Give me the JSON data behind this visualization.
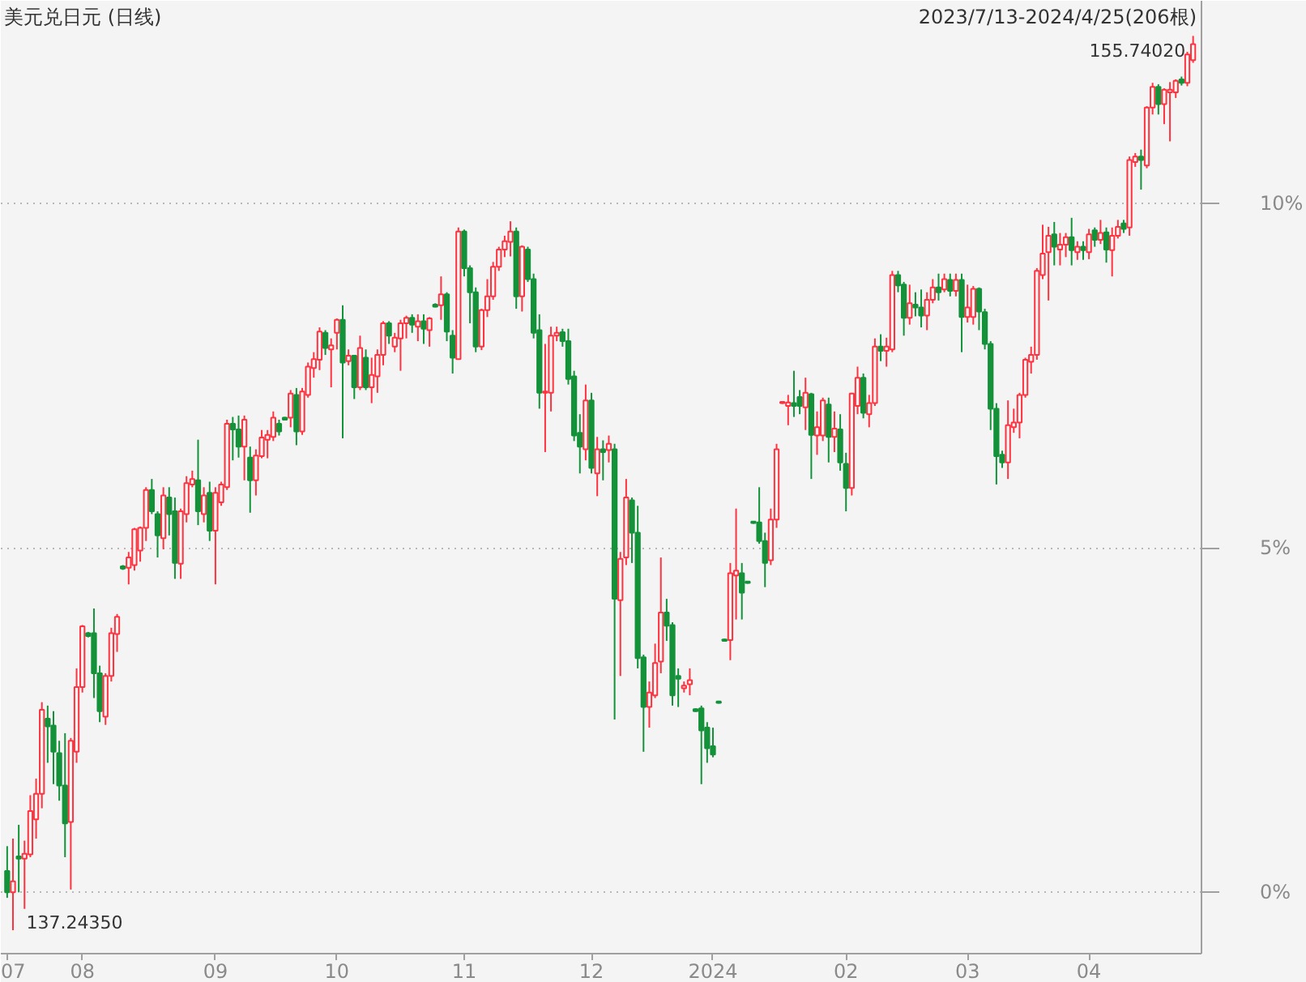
{
  "chart_data": {
    "type": "candlestick",
    "title": "美元兑日元 (日线)",
    "subtitle": "2023/7/13-2024/4/25(206根)",
    "categories": [
      "07",
      null,
      null,
      null,
      null,
      null,
      null,
      null,
      null,
      null,
      null,
      null,
      null,
      "08",
      null,
      null,
      null,
      null,
      null,
      null,
      null,
      null,
      null,
      null,
      null,
      null,
      null,
      null,
      null,
      null,
      null,
      null,
      null,
      null,
      null,
      null,
      "09",
      null,
      null,
      null,
      null,
      null,
      null,
      null,
      null,
      null,
      null,
      null,
      null,
      null,
      null,
      null,
      null,
      null,
      null,
      null,
      null,
      "10",
      null,
      null,
      null,
      null,
      null,
      null,
      null,
      null,
      null,
      null,
      null,
      null,
      null,
      null,
      null,
      null,
      null,
      null,
      null,
      null,
      null,
      "11",
      null,
      null,
      null,
      null,
      null,
      null,
      null,
      null,
      null,
      null,
      null,
      null,
      null,
      null,
      null,
      null,
      null,
      null,
      null,
      null,
      null,
      "12",
      null,
      null,
      null,
      null,
      null,
      null,
      null,
      null,
      null,
      null,
      null,
      null,
      null,
      null,
      null,
      null,
      null,
      null,
      null,
      null,
      "2024",
      null,
      null,
      null,
      null,
      null,
      null,
      null,
      null,
      null,
      null,
      null,
      null,
      null,
      null,
      null,
      null,
      null,
      null,
      null,
      null,
      null,
      null,
      "02",
      null,
      null,
      null,
      null,
      null,
      null,
      null,
      null,
      null,
      null,
      null,
      null,
      null,
      null,
      null,
      null,
      null,
      null,
      null,
      null,
      "03",
      null,
      null,
      null,
      null,
      null,
      null,
      null,
      null,
      null,
      null,
      null,
      null,
      null,
      null,
      null,
      null,
      null,
      null,
      null,
      null,
      "04",
      null,
      null,
      null,
      null,
      null,
      null,
      null,
      null,
      null,
      null,
      null,
      null,
      null,
      null,
      null,
      null,
      null,
      null
    ],
    "ohlc": [
      [
        0.31,
        0.67,
        -0.08,
        0.0
      ],
      [
        0.0,
        0.78,
        -0.55,
        0.16
      ],
      [
        0.52,
        0.98,
        0.0,
        0.49
      ],
      [
        0.49,
        0.75,
        -0.24,
        0.56
      ],
      [
        0.55,
        1.41,
        0.51,
        1.18
      ],
      [
        1.06,
        1.65,
        0.78,
        1.43
      ],
      [
        1.43,
        2.76,
        1.22,
        2.65
      ],
      [
        2.52,
        2.71,
        1.88,
        2.41
      ],
      [
        2.42,
        2.63,
        1.57,
        2.04
      ],
      [
        2.02,
        2.2,
        1.33,
        1.55
      ],
      [
        1.55,
        2.31,
        0.51,
        1.0
      ],
      [
        1.02,
        2.24,
        0.04,
        2.2
      ],
      [
        2.04,
        3.25,
        1.88,
        2.98
      ],
      [
        2.98,
        3.88,
        2.9,
        3.86
      ],
      [
        3.76,
        3.78,
        3.7,
        3.72
      ],
      [
        3.76,
        4.12,
        2.82,
        3.18
      ],
      [
        3.18,
        3.29,
        2.47,
        2.63
      ],
      [
        2.55,
        3.18,
        2.43,
        3.14
      ],
      [
        3.14,
        3.84,
        3.06,
        3.76
      ],
      [
        3.75,
        4.04,
        3.49,
        4.0
      ],
      [
        4.73,
        4.75,
        4.68,
        4.7
      ],
      [
        4.71,
        4.94,
        4.47,
        4.86
      ],
      [
        4.75,
        5.29,
        4.67,
        5.27
      ],
      [
        4.96,
        5.31,
        4.8,
        5.29
      ],
      [
        5.29,
        5.88,
        5.1,
        5.84
      ],
      [
        5.84,
        6.0,
        5.49,
        5.53
      ],
      [
        5.49,
        5.53,
        4.86,
        5.18
      ],
      [
        5.14,
        5.88,
        4.98,
        5.76
      ],
      [
        5.73,
        5.88,
        5.18,
        5.49
      ],
      [
        5.53,
        5.73,
        4.55,
        4.78
      ],
      [
        4.77,
        5.57,
        4.55,
        5.53
      ],
      [
        5.49,
        6.04,
        5.37,
        5.94
      ],
      [
        5.92,
        6.12,
        5.88,
        6.0
      ],
      [
        5.98,
        6.57,
        5.33,
        5.53
      ],
      [
        5.49,
        5.88,
        5.37,
        5.76
      ],
      [
        5.8,
        5.96,
        5.1,
        5.25
      ],
      [
        5.25,
        5.88,
        4.47,
        5.8
      ],
      [
        5.66,
        5.96,
        5.61,
        5.92
      ],
      [
        5.88,
        6.86,
        5.84,
        6.8
      ],
      [
        6.8,
        6.9,
        6.27,
        6.72
      ],
      [
        6.72,
        6.92,
        6.31,
        6.47
      ],
      [
        6.47,
        6.92,
        5.98,
        6.86
      ],
      [
        6.31,
        6.47,
        5.51,
        5.98
      ],
      [
        5.98,
        6.43,
        5.76,
        6.34
      ],
      [
        6.33,
        6.71,
        6.3,
        6.6
      ],
      [
        6.57,
        6.71,
        6.3,
        6.64
      ],
      [
        6.61,
        6.98,
        6.55,
        6.89
      ],
      [
        6.8,
        6.86,
        6.63,
        6.69
      ],
      [
        6.89,
        6.9,
        6.85,
        6.86
      ],
      [
        6.89,
        7.29,
        6.75,
        7.24
      ],
      [
        7.22,
        7.32,
        6.49,
        6.69
      ],
      [
        6.69,
        7.32,
        6.64,
        7.27
      ],
      [
        7.22,
        7.69,
        7.18,
        7.63
      ],
      [
        7.61,
        7.84,
        7.47,
        7.74
      ],
      [
        7.73,
        8.2,
        7.58,
        8.14
      ],
      [
        8.12,
        8.16,
        7.8,
        7.9
      ],
      [
        7.88,
        8.04,
        7.33,
        7.94
      ],
      [
        8.12,
        8.33,
        7.88,
        8.31
      ],
      [
        8.31,
        8.52,
        6.59,
        7.69
      ],
      [
        7.71,
        7.88,
        7.65,
        7.79
      ],
      [
        7.79,
        7.8,
        7.16,
        7.33
      ],
      [
        7.33,
        8.08,
        7.29,
        7.9
      ],
      [
        7.76,
        7.88,
        7.29,
        7.33
      ],
      [
        7.33,
        7.76,
        7.1,
        7.51
      ],
      [
        7.49,
        7.88,
        7.25,
        7.8
      ],
      [
        7.8,
        8.29,
        7.65,
        8.26
      ],
      [
        8.26,
        8.29,
        7.96,
        8.08
      ],
      [
        7.92,
        8.12,
        7.84,
        8.05
      ],
      [
        8.04,
        8.31,
        7.57,
        8.26
      ],
      [
        8.26,
        8.37,
        8.04,
        8.34
      ],
      [
        8.34,
        8.39,
        8.12,
        8.24
      ],
      [
        8.21,
        8.39,
        8.0,
        8.29
      ],
      [
        8.29,
        8.39,
        7.96,
        8.18
      ],
      [
        8.16,
        8.35,
        7.92,
        8.33
      ],
      [
        8.53,
        8.55,
        8.49,
        8.5
      ],
      [
        8.52,
        8.94,
        8.31,
        8.68
      ],
      [
        8.68,
        8.71,
        8.0,
        8.14
      ],
      [
        8.08,
        8.16,
        7.53,
        7.76
      ],
      [
        7.74,
        9.65,
        7.73,
        9.59
      ],
      [
        9.59,
        9.62,
        8.94,
        9.06
      ],
      [
        9.06,
        9.1,
        8.26,
        8.71
      ],
      [
        8.71,
        8.78,
        7.84,
        7.92
      ],
      [
        7.92,
        8.47,
        7.87,
        8.45
      ],
      [
        8.45,
        8.9,
        8.35,
        8.65
      ],
      [
        8.65,
        9.15,
        8.6,
        9.08
      ],
      [
        9.08,
        9.37,
        9.02,
        9.33
      ],
      [
        9.33,
        9.53,
        9.22,
        9.45
      ],
      [
        9.44,
        9.74,
        9.23,
        9.59
      ],
      [
        9.59,
        9.65,
        8.47,
        8.65
      ],
      [
        8.65,
        9.39,
        8.43,
        9.37
      ],
      [
        9.33,
        9.37,
        8.86,
        8.9
      ],
      [
        8.9,
        8.98,
        8.04,
        8.12
      ],
      [
        8.16,
        8.39,
        7.02,
        7.25
      ],
      [
        7.25,
        7.96,
        6.39,
        7.27
      ],
      [
        7.25,
        8.21,
        6.98,
        8.08
      ],
      [
        8.08,
        8.21,
        8.0,
        8.12
      ],
      [
        8.13,
        8.18,
        7.92,
        8.0
      ],
      [
        8.0,
        8.18,
        7.37,
        7.45
      ],
      [
        7.49,
        7.57,
        6.55,
        6.63
      ],
      [
        6.67,
        6.94,
        6.08,
        6.47
      ],
      [
        6.43,
        7.37,
        6.27,
        7.14
      ],
      [
        7.14,
        7.25,
        6.08,
        6.16
      ],
      [
        6.08,
        6.61,
        5.75,
        6.43
      ],
      [
        6.43,
        6.56,
        5.98,
        6.39
      ],
      [
        6.42,
        6.63,
        6.24,
        6.51
      ],
      [
        6.43,
        6.51,
        2.51,
        4.26
      ],
      [
        4.24,
        4.94,
        3.14,
        4.84
      ],
      [
        4.86,
        6.0,
        4.75,
        5.73
      ],
      [
        5.69,
        5.73,
        4.78,
        5.22
      ],
      [
        5.22,
        5.61,
        3.25,
        3.4
      ],
      [
        3.41,
        3.45,
        2.04,
        2.69
      ],
      [
        2.69,
        3.06,
        2.39,
        2.9
      ],
      [
        2.86,
        3.61,
        2.82,
        3.33
      ],
      [
        3.35,
        4.86,
        3.18,
        4.06
      ],
      [
        4.06,
        4.26,
        3.65,
        3.87
      ],
      [
        3.88,
        3.92,
        2.71,
        2.86
      ],
      [
        3.14,
        3.25,
        2.69,
        3.1
      ],
      [
        2.96,
        3.06,
        2.9,
        3.0
      ],
      [
        3.02,
        3.25,
        2.86,
        3.08
      ],
      [
        2.66,
        2.67,
        2.62,
        2.63
      ],
      [
        2.67,
        2.71,
        1.57,
        2.35
      ],
      [
        2.39,
        2.47,
        1.88,
        2.09
      ],
      [
        2.12,
        2.39,
        1.96,
        2.0
      ],
      [
        2.77,
        2.78,
        2.74,
        2.75
      ],
      [
        3.67,
        3.68,
        3.64,
        3.65
      ],
      [
        3.66,
        4.78,
        3.37,
        4.63
      ],
      [
        4.6,
        5.57,
        3.96,
        4.67
      ],
      [
        4.63,
        4.78,
        3.96,
        4.35
      ],
      [
        4.51,
        4.52,
        4.48,
        4.49
      ],
      [
        5.38,
        5.39,
        5.35,
        5.36
      ],
      [
        5.37,
        5.88,
        5.06,
        5.1
      ],
      [
        5.1,
        5.22,
        4.43,
        4.78
      ],
      [
        4.82,
        5.57,
        4.75,
        5.41
      ],
      [
        5.41,
        6.51,
        5.29,
        6.43
      ],
      [
        7.1,
        7.13,
        7.09,
        7.12
      ],
      [
        7.06,
        7.22,
        6.78,
        7.11
      ],
      [
        7.1,
        7.57,
        6.9,
        7.06
      ],
      [
        7.19,
        7.29,
        6.94,
        7.06
      ],
      [
        7.04,
        7.47,
        6.71,
        7.25
      ],
      [
        7.23,
        7.25,
        6.0,
        6.64
      ],
      [
        6.63,
        6.98,
        6.35,
        6.75
      ],
      [
        6.63,
        7.18,
        6.55,
        7.14
      ],
      [
        7.08,
        7.18,
        6.24,
        6.61
      ],
      [
        6.61,
        6.98,
        6.39,
        6.73
      ],
      [
        6.72,
        6.94,
        6.12,
        6.24
      ],
      [
        6.22,
        6.38,
        5.53,
        5.87
      ],
      [
        5.87,
        7.25,
        5.76,
        7.24
      ],
      [
        7.06,
        7.63,
        6.94,
        7.47
      ],
      [
        7.47,
        7.53,
        6.88,
        6.96
      ],
      [
        6.94,
        7.22,
        6.75,
        7.1
      ],
      [
        7.1,
        8.04,
        7.06,
        7.92
      ],
      [
        7.92,
        8.1,
        7.71,
        7.86
      ],
      [
        7.86,
        8.05,
        7.63,
        7.92
      ],
      [
        7.88,
        9.02,
        7.84,
        8.96
      ],
      [
        8.96,
        9.02,
        8.71,
        8.81
      ],
      [
        8.82,
        8.86,
        8.08,
        8.34
      ],
      [
        8.34,
        8.82,
        8.24,
        8.55
      ],
      [
        8.53,
        8.71,
        8.36,
        8.49
      ],
      [
        8.49,
        8.75,
        8.2,
        8.37
      ],
      [
        8.37,
        8.71,
        8.16,
        8.6
      ],
      [
        8.6,
        8.9,
        8.55,
        8.78
      ],
      [
        8.78,
        8.98,
        8.59,
        8.71
      ],
      [
        8.75,
        8.98,
        8.71,
        8.9
      ],
      [
        8.89,
        8.98,
        8.65,
        8.73
      ],
      [
        8.73,
        8.98,
        8.65,
        8.89
      ],
      [
        8.89,
        8.98,
        7.84,
        8.35
      ],
      [
        8.35,
        8.82,
        8.27,
        8.49
      ],
      [
        8.35,
        8.8,
        8.24,
        8.76
      ],
      [
        8.76,
        8.78,
        8.16,
        8.43
      ],
      [
        8.42,
        8.47,
        7.88,
        7.96
      ],
      [
        7.96,
        8.0,
        6.71,
        7.02
      ],
      [
        7.02,
        7.1,
        5.92,
        6.33
      ],
      [
        6.35,
        6.41,
        6.16,
        6.24
      ],
      [
        6.24,
        7.14,
        6.0,
        6.78
      ],
      [
        6.75,
        7.02,
        6.67,
        6.82
      ],
      [
        6.82,
        7.25,
        6.59,
        7.22
      ],
      [
        7.22,
        7.76,
        7.18,
        7.73
      ],
      [
        7.7,
        7.92,
        7.53,
        7.8
      ],
      [
        7.8,
        9.06,
        7.73,
        9.02
      ],
      [
        8.96,
        9.69,
        8.9,
        9.27
      ],
      [
        9.29,
        9.66,
        8.59,
        9.53
      ],
      [
        9.55,
        9.73,
        9.1,
        9.37
      ],
      [
        9.33,
        9.57,
        9.1,
        9.4
      ],
      [
        9.4,
        9.57,
        9.22,
        9.51
      ],
      [
        9.51,
        9.79,
        9.1,
        9.32
      ],
      [
        9.29,
        9.45,
        9.18,
        9.37
      ],
      [
        9.37,
        9.45,
        9.18,
        9.32
      ],
      [
        9.29,
        9.63,
        9.19,
        9.55
      ],
      [
        9.61,
        9.65,
        9.37,
        9.47
      ],
      [
        9.47,
        9.76,
        9.41,
        9.57
      ],
      [
        9.58,
        9.65,
        9.14,
        9.33
      ],
      [
        9.32,
        9.65,
        8.94,
        9.53
      ],
      [
        9.53,
        9.76,
        9.49,
        9.66
      ],
      [
        9.71,
        9.76,
        9.57,
        9.63
      ],
      [
        9.65,
        10.68,
        9.53,
        10.63
      ],
      [
        10.6,
        10.73,
        10.53,
        10.68
      ],
      [
        10.68,
        10.78,
        10.2,
        10.63
      ],
      [
        10.55,
        11.41,
        10.51,
        11.39
      ],
      [
        11.39,
        11.75,
        11.29,
        11.69
      ],
      [
        11.69,
        11.73,
        11.29,
        11.44
      ],
      [
        11.44,
        11.67,
        11.15,
        11.65
      ],
      [
        11.61,
        11.76,
        10.9,
        11.65
      ],
      [
        11.61,
        11.8,
        11.53,
        11.78
      ],
      [
        11.8,
        11.84,
        11.71,
        11.75
      ],
      [
        11.75,
        12.2,
        11.7,
        12.16
      ],
      [
        12.08,
        12.43,
        12.04,
        12.31
      ]
    ],
    "colors": [
      "#13923a",
      "#ff3340",
      "#13923a",
      "#ff3340",
      "#ff3340",
      "#ff3340",
      "#ff3340",
      "#13923a",
      "#13923a",
      "#13923a",
      "#13923a",
      "#ff3340",
      "#ff3340",
      "#ff3340",
      "#13923a",
      "#13923a",
      "#13923a",
      "#ff3340",
      "#ff3340",
      "#ff3340",
      "#13923a",
      "#ff3340",
      "#ff3340",
      "#ff3340",
      "#ff3340",
      "#13923a",
      "#13923a",
      "#ff3340",
      "#13923a",
      "#13923a",
      "#ff3340",
      "#ff3340",
      "#ff3340",
      "#13923a",
      "#ff3340",
      "#13923a",
      "#ff3340",
      "#ff3340",
      "#ff3340",
      "#13923a",
      "#13923a",
      "#ff3340",
      "#13923a",
      "#ff3340",
      "#ff3340",
      "#ff3340",
      "#ff3340",
      "#13923a",
      "#13923a",
      "#ff3340",
      "#13923a",
      "#ff3340",
      "#ff3340",
      "#ff3340",
      "#ff3340",
      "#13923a",
      "#ff3340",
      "#ff3340",
      "#13923a",
      "#ff3340",
      "#13923a",
      "#ff3340",
      "#13923a",
      "#ff3340",
      "#ff3340",
      "#ff3340",
      "#13923a",
      "#ff3340",
      "#ff3340",
      "#ff3340",
      "#13923a",
      "#ff3340",
      "#13923a",
      "#ff3340",
      "#13923a",
      "#ff3340",
      "#13923a",
      "#13923a",
      "#ff3340",
      "#13923a",
      "#13923a",
      "#13923a",
      "#ff3340",
      "#ff3340",
      "#ff3340",
      "#ff3340",
      "#ff3340",
      "#ff3340",
      "#13923a",
      "#ff3340",
      "#13923a",
      "#13923a",
      "#13923a",
      "#ff3340",
      "#ff3340",
      "#ff3340",
      "#13923a",
      "#13923a",
      "#13923a",
      "#13923a",
      "#ff3340",
      "#13923a",
      "#ff3340",
      "#13923a",
      "#ff3340",
      "#13923a",
      "#ff3340",
      "#ff3340",
      "#13923a",
      "#13923a",
      "#13923a",
      "#ff3340",
      "#ff3340",
      "#ff3340",
      "#13923a",
      "#13923a",
      "#13923a",
      "#ff3340",
      "#ff3340",
      "#13923a",
      "#13923a",
      "#13923a",
      "#13923a",
      "#13923a",
      "#13923a",
      "#ff3340",
      "#ff3340",
      "#13923a",
      "#13923a",
      "#13923a",
      "#13923a",
      "#13923a",
      "#ff3340",
      "#ff3340",
      "#ff3340",
      "#ff3340",
      "#13923a",
      "#13923a",
      "#ff3340",
      "#13923a",
      "#ff3340",
      "#ff3340",
      "#13923a",
      "#ff3340",
      "#13923a",
      "#13923a",
      "#ff3340",
      "#ff3340",
      "#13923a",
      "#ff3340",
      "#ff3340",
      "#13923a",
      "#ff3340",
      "#ff3340",
      "#13923a",
      "#13923a",
      "#ff3340",
      "#13923a",
      "#13923a",
      "#ff3340",
      "#ff3340",
      "#13923a",
      "#ff3340",
      "#13923a",
      "#ff3340",
      "#13923a",
      "#ff3340",
      "#ff3340",
      "#13923a",
      "#13923a",
      "#13923a",
      "#13923a",
      "#13923a",
      "#ff3340",
      "#ff3340",
      "#ff3340",
      "#ff3340",
      "#ff3340",
      "#ff3340",
      "#ff3340",
      "#ff3340",
      "#13923a",
      "#ff3340",
      "#ff3340",
      "#13923a",
      "#ff3340",
      "#13923a",
      "#ff3340",
      "#13923a",
      "#ff3340",
      "#13923a",
      "#ff3340",
      "#ff3340",
      "#13923a",
      "#ff3340",
      "#ff3340",
      "#13923a",
      "#ff3340",
      "#ff3340",
      "#13923a",
      "#ff3340",
      "#ff3340",
      "#ff3340",
      "#13923a",
      "#ff3340",
      "#ff3340"
    ],
    "ylim": [
      -0.89,
      12.94
    ],
    "yticks": [
      {
        "value": 0,
        "label": "0%"
      },
      {
        "value": 5,
        "label": "5%"
      },
      {
        "value": 10,
        "label": "10%"
      }
    ],
    "grid": "y",
    "annotations": [
      "155.74020",
      "137.24350"
    ]
  }
}
